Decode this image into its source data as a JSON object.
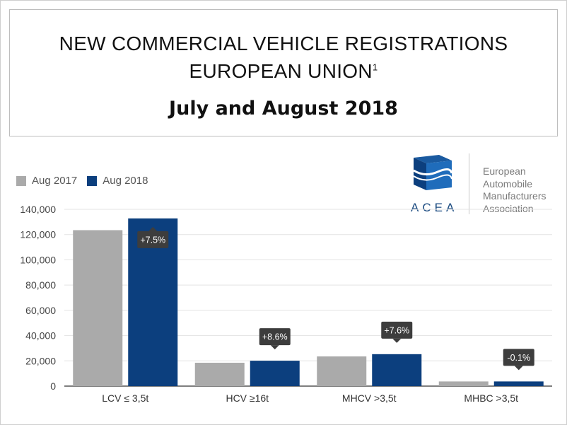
{
  "header": {
    "title_line1": "NEW COMMERCIAL VEHICLE REGISTRATIONS",
    "title_line2": "EUROPEAN UNION",
    "title_footnote": "1",
    "period": "July and August 2018"
  },
  "logo": {
    "acronym": "ACEA",
    "name_lines": [
      "European",
      "Automobile",
      "Manufacturers",
      "Association"
    ],
    "icon": "acea-cube-icon"
  },
  "colors": {
    "aug2017": "#aaaaaa",
    "aug2018": "#0c3f7e",
    "callout": "#3d3d3d"
  },
  "chart_data": {
    "type": "bar",
    "categories": [
      "LCV ≤ 3,5t",
      "HCV ≥16t",
      "MHCV >3,5t",
      "MHBC >3,5t"
    ],
    "series": [
      {
        "name": "Aug 2017",
        "values": [
          123500,
          18500,
          23500,
          3700
        ]
      },
      {
        "name": "Aug 2018",
        "values": [
          132800,
          20100,
          25300,
          3700
        ]
      }
    ],
    "change_labels": [
      "+7.5%",
      "+8.6%",
      "+7.6%",
      "-0.1%"
    ],
    "y_ticks": [
      "0",
      "20,000",
      "40,000",
      "60,000",
      "80,000",
      "100,000",
      "120,000",
      "140,000"
    ],
    "ylim": [
      0,
      140000
    ],
    "grid": true,
    "legend": "top-left"
  }
}
